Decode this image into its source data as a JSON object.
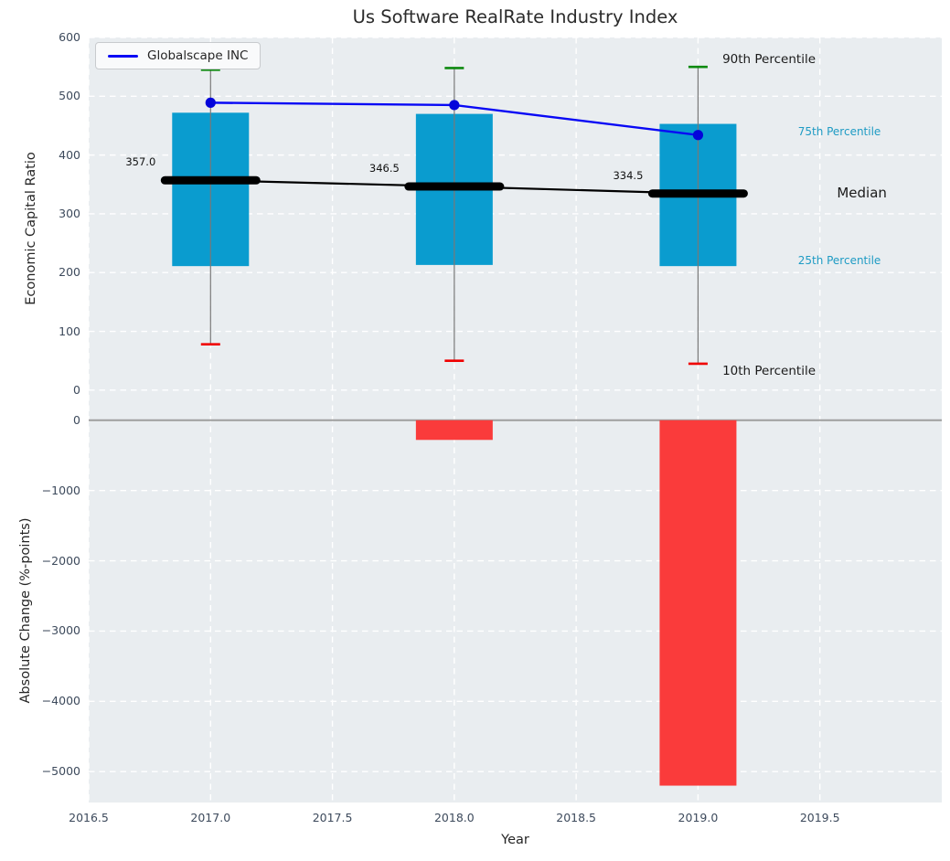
{
  "title": "Us Software RealRate Industry Index",
  "legend": {
    "label": "Globalscape INC",
    "line_color": "#0808f5"
  },
  "colors": {
    "axes_bg": "#e9edf0",
    "grid": "#ffffff",
    "bar": "#0a9ccf",
    "whisker_stem": "#787878",
    "cap_90th": "#0e8a10",
    "cap_10th": "#f00000",
    "median": "#000000",
    "company_line": "#0808f5",
    "company_dot": "#0404da",
    "change_bar": "#fa3b3b",
    "zero_line": "#9e9e9e",
    "tick_text": "#3d4a5c",
    "percentile_text_cyan": "#1e9bc4",
    "annotation_text": "#1a1a1a"
  },
  "x_axis": {
    "label": "Year",
    "lim": [
      2016.5,
      2020.0
    ],
    "tick_values": [
      2016.5,
      2017.0,
      2017.5,
      2018.0,
      2018.5,
      2019.0,
      2019.5
    ],
    "tick_labels": [
      "2016.5",
      "2017.0",
      "2017.5",
      "2018.0",
      "2018.5",
      "2019.0",
      "2019.5"
    ]
  },
  "chart_data": [
    {
      "type": "bar",
      "subtype": "percentile-box-bars-with-line-overlay",
      "title": "Us Software RealRate Industry Index",
      "xlabel": "Year",
      "ylabel": "Economic Capital Ratio",
      "x": [
        2017,
        2018,
        2019
      ],
      "xlim": [
        2016.5,
        2020.0
      ],
      "ylim": [
        -50,
        600
      ],
      "ytick_values": [
        600,
        500,
        400,
        300,
        200,
        100,
        0
      ],
      "ytick_labels": [
        "600",
        "500",
        "400",
        "300",
        "200",
        "100",
        "0"
      ],
      "grid": true,
      "legend_position": "upper left",
      "series": [
        {
          "name": "90th Percentile",
          "role": "whisker-top-cap",
          "values": [
            545,
            548,
            550
          ]
        },
        {
          "name": "75th Percentile",
          "role": "bar-top",
          "values": [
            472,
            470,
            453
          ]
        },
        {
          "name": "Median",
          "role": "median-line",
          "values": [
            357.0,
            346.5,
            334.5
          ]
        },
        {
          "name": "25th Percentile",
          "role": "bar-bottom",
          "values": [
            211,
            213,
            211
          ]
        },
        {
          "name": "10th Percentile",
          "role": "whisker-bottom-cap",
          "values": [
            78,
            50,
            45
          ]
        },
        {
          "name": "Globalscape INC",
          "role": "line-with-markers",
          "values": [
            489,
            485,
            434
          ]
        }
      ],
      "median_value_labels": [
        "357.0",
        "346.5",
        "334.5"
      ],
      "annotations": [
        {
          "text": "90th Percentile",
          "x": 2019.1,
          "y": 562,
          "color": "#1a1a1a",
          "size": 13.5
        },
        {
          "text": "75th Percentile",
          "x": 2019.41,
          "y": 440,
          "color": "#1e9bc4",
          "size": 12
        },
        {
          "text": "Median",
          "x": 2019.57,
          "y": 336,
          "color": "#1a1a1a",
          "size": 15
        },
        {
          "text": "25th Percentile",
          "x": 2019.41,
          "y": 221,
          "color": "#1e9bc4",
          "size": 12
        },
        {
          "text": "10th Percentile",
          "x": 2019.1,
          "y": 32,
          "color": "#1a1a1a",
          "size": 13.5
        }
      ]
    },
    {
      "type": "bar",
      "ylabel": "Absolute Change (%-points)",
      "x": [
        2017,
        2018,
        2019
      ],
      "values": [
        null,
        -280,
        -5200
      ],
      "ylim": [
        10,
        -5440
      ],
      "ytick_values": [
        0,
        -1000,
        -2000,
        -3000,
        -4000,
        -5000
      ],
      "ytick_labels": [
        "0",
        "−1000",
        "−2000",
        "−3000",
        "−4000",
        "−5000"
      ],
      "grid": true
    }
  ]
}
